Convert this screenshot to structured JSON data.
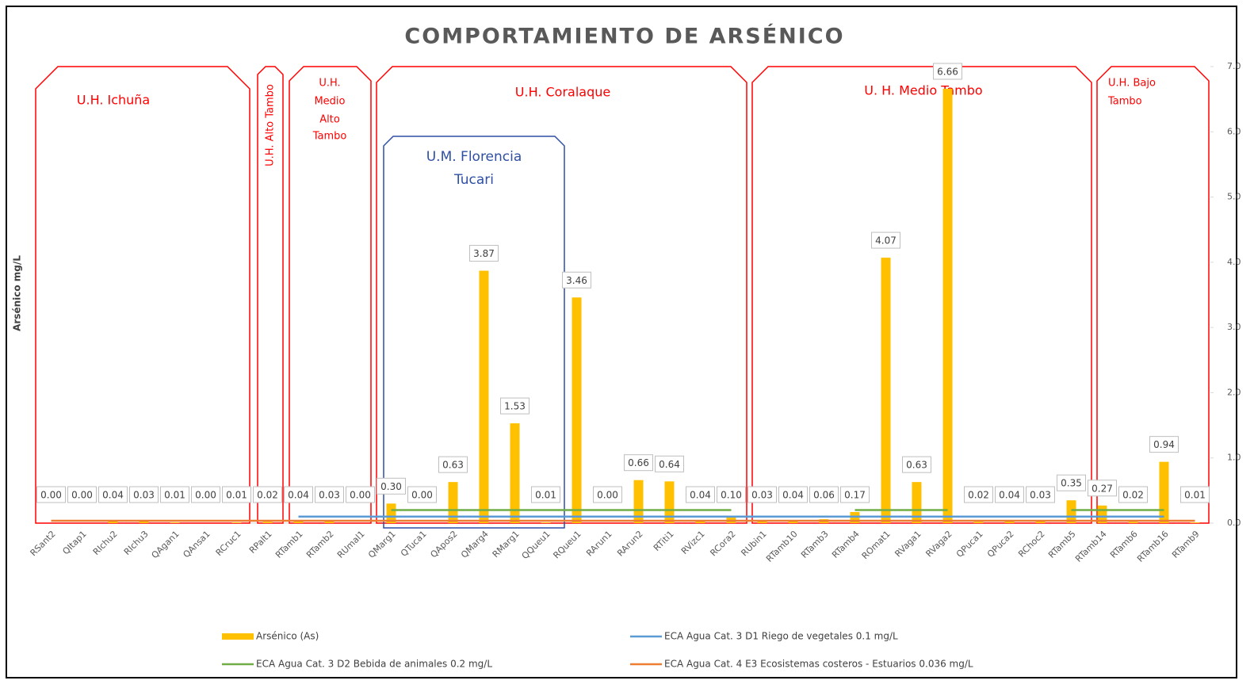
{
  "chart_data": {
    "type": "bar",
    "title": "COMPORTAMIENTO DE ARSÉNICO",
    "y_axis_label": "Arsénico mg/L",
    "categories": [
      "RSant2",
      "QItap1",
      "RIchu2",
      "RIchu3",
      "QAgan1",
      "QAnsa1",
      "RCruc1",
      "RPalt1",
      "RTamb1",
      "RTamb2",
      "RUmal1",
      "QMarg1",
      "QTuca1",
      "QApos2",
      "QMarg4",
      "RMarg1",
      "QQueu1",
      "RQueu1",
      "RArun1",
      "RArun2",
      "RTiti1",
      "RVizc1",
      "RCora2",
      "RUbin1",
      "RTamb10",
      "RTamb3",
      "RTamb4",
      "ROmat1",
      "RVaga1",
      "RVaga2",
      "QPuca1",
      "QPuca2",
      "RChoc2",
      "RTamb5",
      "RTamb14",
      "RTamb6",
      "RTamb16",
      "RTamb9"
    ],
    "series": [
      {
        "name": "Arsénico (As)",
        "type": "bar",
        "color": "#ffc000",
        "values": [
          0,
          0,
          0.04,
          0.03,
          0.01,
          0,
          0.01,
          0.02,
          0.04,
          0.03,
          0,
          0.3,
          0,
          0.63,
          3.87,
          1.53,
          0.01,
          3.46,
          0,
          0.66,
          0.64,
          0.04,
          0.1,
          0.03,
          0.04,
          0.06,
          0.17,
          4.07,
          0.63,
          6.66,
          0.02,
          0.04,
          0.03,
          0.35,
          0.27,
          0.02,
          0.94,
          0.01
        ],
        "value_labels": [
          "0.00",
          "0.00",
          "0.04",
          "0.03",
          "0.01",
          "0.00",
          "0.01",
          "0.02",
          "0.04",
          "0.03",
          "0.00",
          "0.30",
          "0.00",
          "0.63",
          "3.87",
          "1.53",
          "0.01",
          "3.46",
          "0.00",
          "0.66",
          "0.64",
          "0.04",
          "0.10",
          "0.03",
          "0.04",
          "0.06",
          "0.17",
          "4.07",
          "0.63",
          "6.66",
          "0.02",
          "0.04",
          "0.03",
          "0.35",
          "0.27",
          "0.02",
          "0.94",
          "0.01"
        ]
      },
      {
        "name": "ECA Agua Cat. 3 D1 Riego de vegetales 0.1 mg/L",
        "type": "line",
        "color": "#5b9bd5",
        "values": [
          null,
          null,
          null,
          null,
          null,
          null,
          null,
          null,
          0.1,
          0.1,
          0.1,
          0.1,
          0.1,
          0.1,
          0.1,
          0.1,
          0.1,
          0.1,
          0.1,
          0.1,
          0.1,
          0.1,
          0.1,
          0.1,
          0.1,
          0.1,
          0.1,
          0.1,
          0.1,
          0.1,
          0.1,
          0.1,
          0.1,
          0.1,
          0.1,
          0.1,
          0.1,
          null
        ]
      },
      {
        "name": "ECA Agua Cat. 3 D2 Bebida de animales 0.2 mg/L",
        "type": "line",
        "color": "#70ad47",
        "values": [
          null,
          null,
          null,
          null,
          null,
          null,
          null,
          null,
          null,
          null,
          null,
          0.2,
          0.2,
          0.2,
          0.2,
          0.2,
          0.2,
          0.2,
          0.2,
          0.2,
          0.2,
          0.2,
          0.2,
          null,
          null,
          null,
          0.2,
          0.2,
          0.2,
          0.2,
          null,
          null,
          null,
          0.2,
          0.2,
          0.2,
          0.2,
          null
        ]
      },
      {
        "name": "ECA Agua Cat. 4 E3 Ecosistemas costeros - Estuarios 0.036 mg/L",
        "type": "line",
        "color": "#ed7d31",
        "values": [
          0.036,
          0.036,
          0.036,
          0.036,
          0.036,
          0.036,
          0.036,
          0.036,
          0.036,
          0.036,
          0.036,
          0.036,
          0.036,
          0.036,
          0.036,
          0.036,
          0.036,
          0.036,
          0.036,
          0.036,
          0.036,
          0.036,
          0.036,
          0.036,
          0.036,
          0.036,
          0.036,
          0.036,
          0.036,
          0.036,
          0.036,
          0.036,
          0.036,
          0.036,
          0.036,
          0.036,
          0.036,
          0.036
        ]
      }
    ],
    "ylim": [
      0,
      7
    ],
    "yticks": [
      {
        "value": 0,
        "label": "0.0"
      },
      {
        "value": 1,
        "label": "1.0"
      },
      {
        "value": 2,
        "label": "2.0"
      },
      {
        "value": 3,
        "label": "3.0"
      },
      {
        "value": 4,
        "label": "4.0"
      },
      {
        "value": 5,
        "label": "5.0"
      },
      {
        "value": 6,
        "label": "6.0"
      },
      {
        "value": 7,
        "label": "7.0"
      }
    ],
    "annotations": [
      {
        "lines": [
          "U.H. Ichuña"
        ]
      },
      {
        "lines": [
          "U.H. Alto Tambo"
        ]
      },
      {
        "lines": [
          "U.H.",
          "Medio",
          "Alto",
          "Tambo"
        ]
      },
      {
        "lines": [
          "U.H. Coralaque"
        ]
      },
      {
        "lines": [
          "U. H. Medio Tambo"
        ]
      },
      {
        "lines": [
          "U.H. Bajo",
          "Tambo"
        ]
      },
      {
        "lines": [
          "U.M. Florencia",
          "Tucari"
        ]
      }
    ]
  }
}
